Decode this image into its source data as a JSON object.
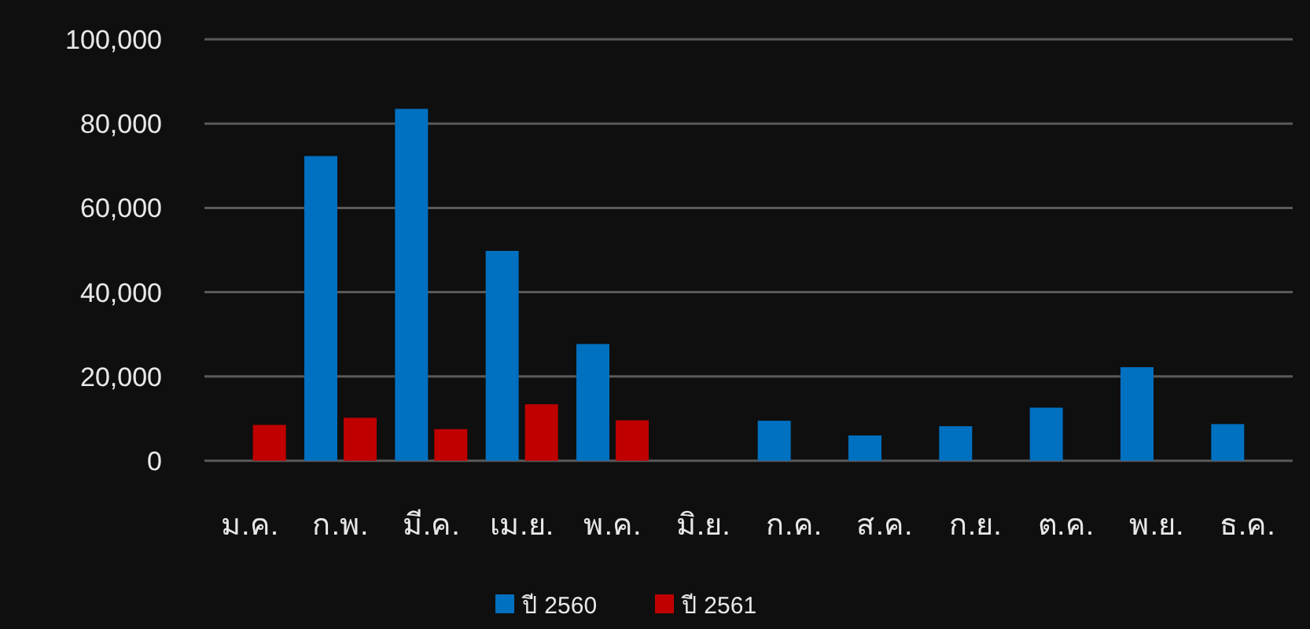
{
  "chart_data": {
    "type": "bar",
    "categories": [
      "ม.ค.",
      "ก.พ.",
      "มี.ค.",
      "เม.ย.",
      "พ.ค.",
      "มิ.ย.",
      "ก.ค.",
      "ส.ค.",
      "ก.ย.",
      "ต.ค.",
      "พ.ย.",
      "ธ.ค."
    ],
    "series": [
      {
        "name": "ปี 2560",
        "color": "#0070c0",
        "values": [
          null,
          72300,
          83500,
          49800,
          27700,
          null,
          9500,
          6000,
          8200,
          12600,
          22200,
          8700
        ]
      },
      {
        "name": "ปี 2561",
        "color": "#c00000",
        "values": [
          8500,
          10200,
          7500,
          13400,
          9600,
          null,
          null,
          null,
          null,
          null,
          null,
          null
        ]
      }
    ],
    "ylim": [
      0,
      100000
    ],
    "yticks": [
      {
        "value": 0,
        "label": "0"
      },
      {
        "value": 20000,
        "label": "20,000"
      },
      {
        "value": 40000,
        "label": "40,000"
      },
      {
        "value": 60000,
        "label": "60,000"
      },
      {
        "value": 80000,
        "label": "80,000"
      },
      {
        "value": 100000,
        "label": "100,000"
      }
    ],
    "grid": "y",
    "legend": "bottom"
  }
}
